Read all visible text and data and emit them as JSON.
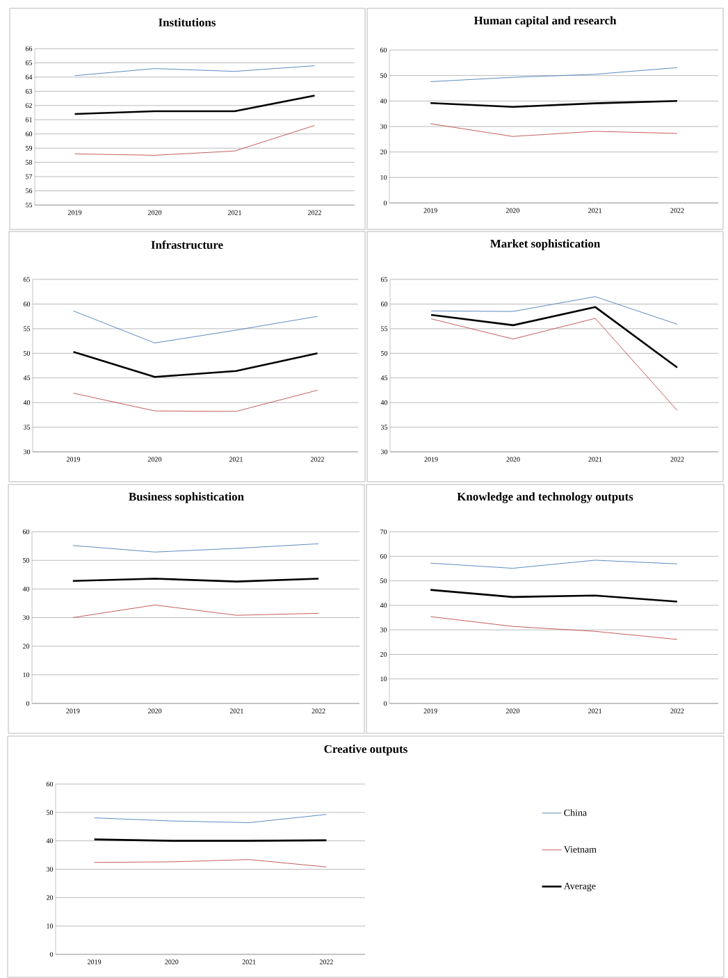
{
  "chart_data": [
    {
      "type": "line",
      "title": "Institutions",
      "categories": [
        "2019",
        "2020",
        "2021",
        "2022"
      ],
      "ylim": [
        55,
        66
      ],
      "yticks": [
        55,
        56,
        57,
        58,
        59,
        60,
        61,
        62,
        63,
        64,
        65,
        66
      ],
      "grid": "y",
      "series": [
        {
          "color": "#4a7ebb",
          "values": [
            64.1,
            64.6,
            64.4,
            64.8
          ]
        },
        {
          "color": "#be4b48",
          "values": [
            58.6,
            58.5,
            58.8,
            60.6
          ]
        },
        {
          "color": "#000000",
          "values": [
            61.4,
            61.6,
            61.6,
            62.7
          ]
        }
      ]
    },
    {
      "type": "line",
      "title": "Human capital and research",
      "categories": [
        "2019",
        "2020",
        "2021",
        "2022"
      ],
      "ylim": [
        0,
        60
      ],
      "yticks": [
        0,
        10,
        20,
        30,
        40,
        50,
        60
      ],
      "grid": "y",
      "series": [
        {
          "color": "#4a7ebb",
          "values": [
            47.6,
            49.3,
            50.5,
            53.1
          ]
        },
        {
          "color": "#be4b48",
          "values": [
            31.1,
            26.1,
            28.1,
            27.3
          ]
        },
        {
          "color": "#000000",
          "values": [
            39.2,
            37.7,
            39.1,
            40.0
          ]
        }
      ]
    },
    {
      "type": "line",
      "title": "Infrastructure",
      "categories": [
        "2019",
        "2020",
        "2021",
        "2022"
      ],
      "ylim": [
        30,
        65
      ],
      "yticks": [
        30,
        35,
        40,
        45,
        50,
        55,
        60,
        65
      ],
      "grid": "y",
      "series": [
        {
          "color": "#4a7ebb",
          "values": [
            58.6,
            52.1,
            54.7,
            57.5
          ]
        },
        {
          "color": "#be4b48",
          "values": [
            41.9,
            38.3,
            38.2,
            42.5
          ]
        },
        {
          "color": "#000000",
          "values": [
            50.3,
            45.2,
            46.4,
            50.0
          ]
        }
      ]
    },
    {
      "type": "line",
      "title": "Market sophistication",
      "categories": [
        "2019",
        "2020",
        "2021",
        "2022"
      ],
      "ylim": [
        30,
        65
      ],
      "yticks": [
        30,
        35,
        40,
        45,
        50,
        55,
        60,
        65
      ],
      "grid": "y",
      "series": [
        {
          "color": "#4a7ebb",
          "values": [
            58.6,
            58.5,
            61.5,
            55.9
          ]
        },
        {
          "color": "#be4b48",
          "values": [
            57.0,
            52.9,
            57.1,
            38.4
          ]
        },
        {
          "color": "#000000",
          "values": [
            57.8,
            55.7,
            59.4,
            47.1
          ]
        }
      ]
    },
    {
      "type": "line",
      "title": "Business sophistication",
      "categories": [
        "2019",
        "2020",
        "2021",
        "2022"
      ],
      "ylim": [
        0,
        60
      ],
      "yticks": [
        0,
        10,
        20,
        30,
        40,
        50,
        60
      ],
      "grid": "y",
      "series": [
        {
          "color": "#4a7ebb",
          "values": [
            55.2,
            52.9,
            54.2,
            55.8
          ]
        },
        {
          "color": "#be4b48",
          "values": [
            30.0,
            34.4,
            30.8,
            31.5
          ]
        },
        {
          "color": "#000000",
          "values": [
            42.8,
            43.6,
            42.6,
            43.6
          ]
        }
      ]
    },
    {
      "type": "line",
      "title": "Knowledge and technology outputs",
      "categories": [
        "2019",
        "2020",
        "2021",
        "2022"
      ],
      "ylim": [
        0,
        70
      ],
      "yticks": [
        0,
        10,
        20,
        30,
        40,
        50,
        60,
        70
      ],
      "grid": "y",
      "series": [
        {
          "color": "#4a7ebb",
          "values": [
            57.2,
            55.1,
            58.4,
            56.9
          ]
        },
        {
          "color": "#be4b48",
          "values": [
            35.4,
            31.4,
            29.4,
            26.1
          ]
        },
        {
          "color": "#000000",
          "values": [
            46.3,
            43.4,
            44.0,
            41.5
          ]
        }
      ]
    },
    {
      "type": "line",
      "title": "Creative outputs",
      "categories": [
        "2019",
        "2020",
        "2021",
        "2022"
      ],
      "ylim": [
        0,
        60
      ],
      "yticks": [
        0,
        10,
        20,
        30,
        40,
        50,
        60
      ],
      "grid": "y",
      "legend": "right",
      "series": [
        {
          "name": "China",
          "color": "#4a7ebb",
          "values": [
            48.1,
            47.0,
            46.4,
            49.3
          ]
        },
        {
          "name": "Vietnam",
          "color": "#be4b48",
          "values": [
            32.4,
            32.6,
            33.4,
            30.8
          ]
        },
        {
          "name": "Average",
          "color": "#000000",
          "values": [
            40.5,
            40.0,
            40.0,
            40.2
          ]
        }
      ]
    }
  ]
}
